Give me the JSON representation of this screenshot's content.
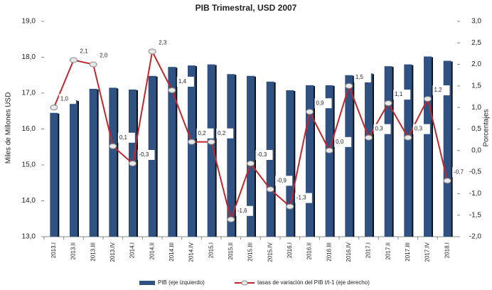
{
  "chart_data": {
    "type": "bar-line",
    "title": "PIB Trimestral, USD 2007",
    "y_label": "Miles de Millones USD",
    "y2_label": "Porcentajes",
    "categories": [
      "2013.I",
      "2013.II",
      "2013.III",
      "2013.IV",
      "2014.I",
      "2014.II",
      "2014.III",
      "2014.IV",
      "2015.I",
      "2015.II",
      "2015.III",
      "2015.IV",
      "2016.I",
      "2016.II",
      "2016.III",
      "2016.IV",
      "2017.I",
      "2017.II",
      "2017.III",
      "2017.IV",
      "2018.I"
    ],
    "series": [
      {
        "name": "PIB (eje izquierdo)",
        "type": "bar",
        "color": "#2f5283",
        "values": [
          16.45,
          16.8,
          17.12,
          17.15,
          17.1,
          17.48,
          17.73,
          17.77,
          17.8,
          17.53,
          17.48,
          17.32,
          17.08,
          17.22,
          17.22,
          17.5,
          17.55,
          17.75,
          17.8,
          18.02,
          17.9
        ]
      },
      {
        "name": "tasas de variación del PIB t/t-1 (eje derecho)",
        "type": "line",
        "axis": "y2",
        "color": "#c0282e",
        "values": [
          1.0,
          2.1,
          2.0,
          0.1,
          -0.3,
          2.3,
          1.4,
          0.2,
          0.2,
          -1.6,
          -0.3,
          -0.9,
          -1.3,
          0.9,
          0.0,
          1.5,
          0.3,
          1.1,
          0.3,
          1.2,
          -0.7
        ],
        "value_labels": [
          "1,0",
          "2,1",
          "2,0",
          "0,1",
          "-0,3",
          "2,3",
          "1,4",
          "0,2",
          "0,2",
          "-1,6",
          "-0,3",
          "-0,9",
          "-1,3",
          "0,9",
          "0,0",
          "1,5",
          "0,3",
          "1,1",
          "0,3",
          "1,2",
          "-0,7"
        ]
      }
    ],
    "ylim": [
      13,
      19
    ],
    "yticks": [
      {
        "value": 13,
        "label": "13,0"
      },
      {
        "value": 14,
        "label": "14,0"
      },
      {
        "value": 15,
        "label": "15,0"
      },
      {
        "value": 16,
        "label": "16,0"
      },
      {
        "value": 17,
        "label": "17,0"
      },
      {
        "value": 18,
        "label": "18,0"
      },
      {
        "value": 19,
        "label": "19,0"
      }
    ],
    "y2lim": [
      -2,
      3
    ],
    "y2ticks": [
      {
        "value": -2,
        "label": "-2,0"
      },
      {
        "value": -1.5,
        "label": "-1,5"
      },
      {
        "value": -1,
        "label": "-1,0"
      },
      {
        "value": -0.5,
        "label": "-0,5"
      },
      {
        "value": 0,
        "label": "0,0"
      },
      {
        "value": 0.5,
        "label": "0,5"
      },
      {
        "value": 1,
        "label": "1,0"
      },
      {
        "value": 1.5,
        "label": "1,5"
      },
      {
        "value": 2,
        "label": "2,0"
      },
      {
        "value": 2.5,
        "label": "2,5"
      },
      {
        "value": 3,
        "label": "3,0"
      }
    ],
    "grid": false,
    "legend": "bottom"
  }
}
